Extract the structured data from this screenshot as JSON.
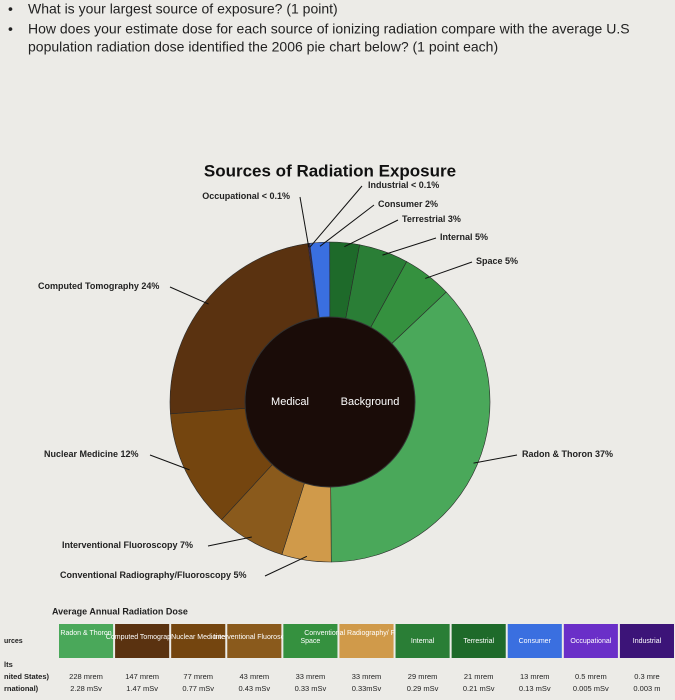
{
  "questions": [
    "What is your largest source of exposure? (1 point)",
    "How does your estimate dose for each source of ionizing radiation compare with the average U.S",
    "population radiation dose identified the 2006 pie chart below? (1 point each)"
  ],
  "chart_data": {
    "type": "pie",
    "title": "Sources of Radiation Exposure",
    "categories": [
      "Occupational",
      "Industrial",
      "Consumer",
      "Terrestrial",
      "Internal",
      "Space",
      "Radon & Thoron",
      "Conventional Radiography/Fluoroscopy",
      "Interventional Fluoroscopy",
      "Nuclear Medicine",
      "Computed Tomography"
    ],
    "values": [
      0.1,
      0.1,
      2,
      3,
      5,
      5,
      37,
      5,
      7,
      12,
      24
    ],
    "value_labels": [
      "< 0.1%",
      "< 0.1%",
      "2%",
      "3%",
      "5%",
      "5%",
      "37%",
      "5%",
      "7%",
      "12%",
      "24%"
    ],
    "colors": [
      "#6a2fc8",
      "#3c1478",
      "#3a6fe0",
      "#1e6a2a",
      "#2a7e36",
      "#35913f",
      "#4aa85a",
      "#d09a4a",
      "#8a5a1c",
      "#74450f",
      "#5a3210"
    ],
    "center_labels": [
      "Medical",
      "Background"
    ]
  },
  "table": {
    "title": "Average Annual Radiation Dose",
    "header": [
      "urces",
      "Radon & Thoron",
      "Computed Tomography",
      "Nuclear Medicine",
      "Interventional Fluoroscopy",
      "Space",
      "Conventional Radiography/ Fluoroscopy",
      "Internal",
      "Terrestrial",
      "Consumer",
      "Occupational",
      "Industrial"
    ],
    "units_label": "lts",
    "rows": [
      [
        "nited States)",
        "228 mrem",
        "147 mrem",
        "77 mrem",
        "43 mrem",
        "33 mrem",
        "33 mrem",
        "29 mrem",
        "21 mrem",
        "13 mrem",
        "0.5 mrem",
        "0.3 mre"
      ],
      [
        "rnational)",
        "2.28 mSv",
        "1.47 mSv",
        "0.77 mSv",
        "0.43 mSv",
        "0.33 mSv",
        "0.33mSv",
        "0.29 mSv",
        "0.21 mSv",
        "0.13 mSv",
        "0.005 mSv",
        "0.003 m"
      ]
    ]
  }
}
